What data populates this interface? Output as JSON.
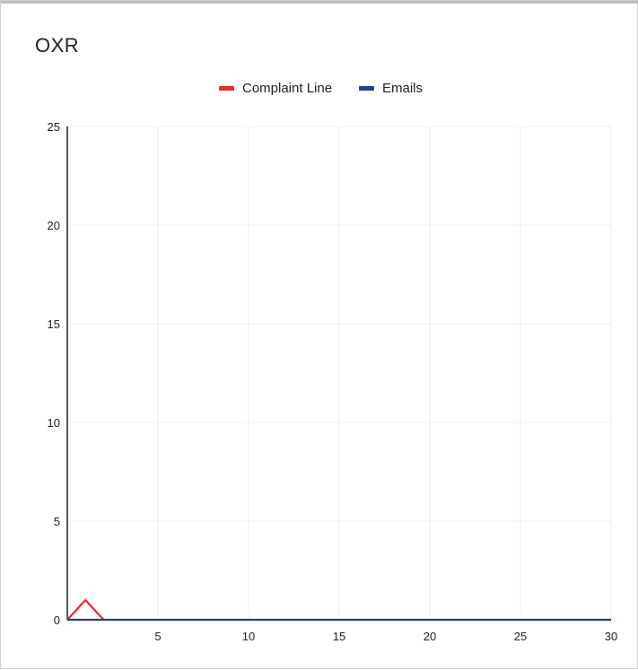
{
  "chart_data": {
    "type": "line",
    "title": "OXR",
    "xlabel": "",
    "ylabel": "",
    "xlim": [
      0,
      30
    ],
    "ylim": [
      0,
      25
    ],
    "x_ticks": [
      5,
      10,
      15,
      20,
      25,
      30
    ],
    "y_ticks": [
      0,
      5,
      10,
      15,
      20,
      25
    ],
    "grid": true,
    "legend_position": "top-center",
    "series": [
      {
        "name": "Complaint Line",
        "color": "#e52b2b",
        "points": [
          [
            0,
            0
          ],
          [
            1,
            1
          ],
          [
            2,
            0
          ]
        ]
      },
      {
        "name": "Emails",
        "color": "#2a3a8f",
        "points": [
          [
            0,
            0
          ],
          [
            30,
            0
          ]
        ]
      }
    ]
  }
}
